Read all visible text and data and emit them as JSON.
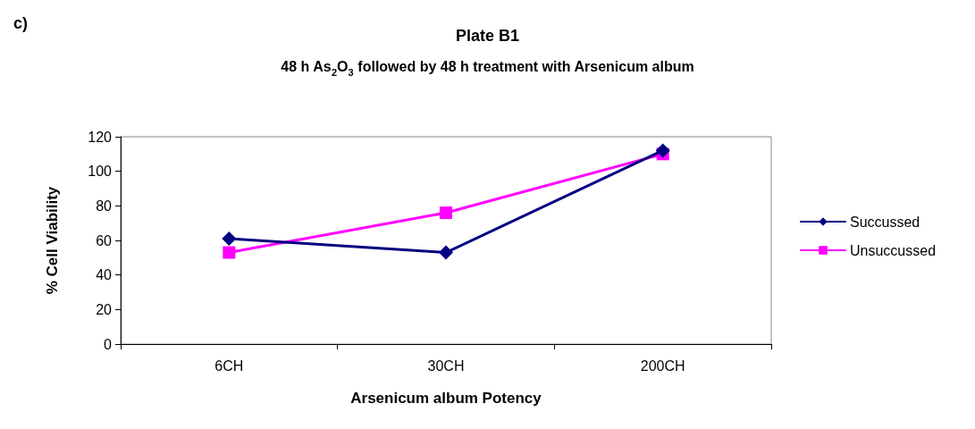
{
  "chart_data": {
    "type": "line",
    "title": "Plate B1",
    "subtitle": "48 h As$_{2}$O$_{3}$ followed by 48 h treatment with Arsenicum album",
    "xlabel": "Arsenicum album Potency",
    "ylabel": "% Cell Viability",
    "annotations": [
      "c)"
    ],
    "categories": [
      "6CH",
      "30CH",
      "200CH"
    ],
    "series": [
      {
        "name": "Succussed",
        "color": "#000080",
        "marker": "diamond",
        "values": [
          61,
          53,
          112
        ]
      },
      {
        "name": "Unsuccussed",
        "color": "#ff00ff",
        "marker": "square",
        "values": [
          53,
          76,
          110
        ]
      }
    ],
    "ylim": [
      0,
      120
    ],
    "yticks": [
      0,
      20,
      40,
      60,
      80,
      100,
      120
    ],
    "grid": false,
    "legend": "right",
    "line_style": "solid"
  }
}
